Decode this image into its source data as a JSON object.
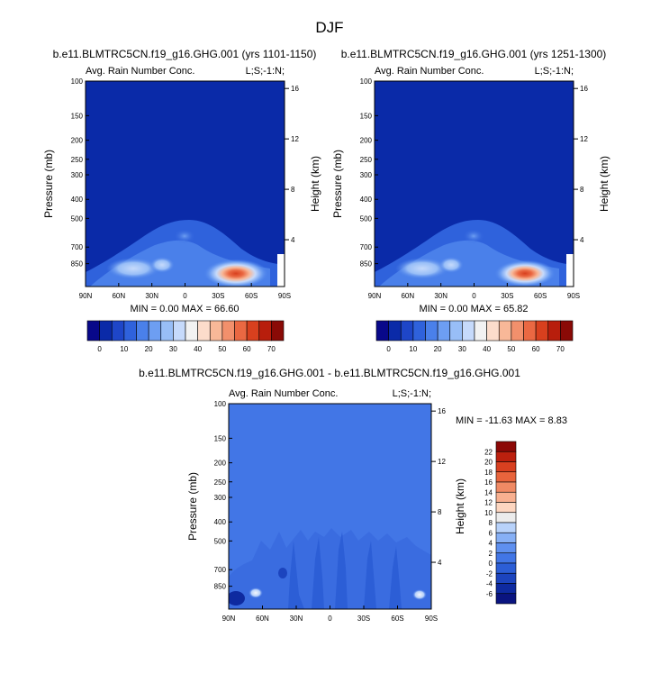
{
  "colors": {
    "frame": "#000000",
    "cmap_abs": [
      "#08088a",
      "#0a2aa8",
      "#1e46c8",
      "#2f62dc",
      "#4a80ea",
      "#6d9ef2",
      "#98bef7",
      "#c6dafb",
      "#f2f2f2",
      "#fcdccb",
      "#f8b898",
      "#f2906c",
      "#ea6842",
      "#d8401e",
      "#b81e0c",
      "#8a0a06"
    ],
    "cmap_diff": [
      "#0a1480",
      "#0e2aa0",
      "#1c44be",
      "#2c5ed6",
      "#4276e6",
      "#5f90ef",
      "#87b0f5",
      "#b8d2fa",
      "#ececec",
      "#fdd6c0",
      "#f8b090",
      "#f08a64",
      "#e8643c",
      "#d84020",
      "#bc200e",
      "#8c0806"
    ]
  },
  "chart_data": {
    "title": "DJF",
    "charts": [
      {
        "id": "panel-a",
        "type": "heatmap",
        "case_title": "b.e11.BLMTRC5CN.f19_g16.GHG.001 (yrs 1101-1150)",
        "left_label": "Avg. Rain Number Conc.",
        "right_label": "L;S;-1:N;",
        "ylabel": "Pressure (mb)",
        "ylabel_right": "Height (km)",
        "xticks": [
          "90N",
          "60N",
          "30N",
          "0",
          "30S",
          "60S",
          "90S"
        ],
        "yticks": [
          "100",
          "150",
          "200",
          "250",
          "300",
          "400",
          "500",
          "700",
          "850"
        ],
        "heights": [
          "16",
          "12",
          "8",
          "4"
        ],
        "min_max": "MIN =   0.00  MAX =  66.60",
        "min": 0.0,
        "max": 66.6,
        "colorbar_labels": [
          "0",
          "10",
          "20",
          "30",
          "40",
          "50",
          "60",
          "70"
        ]
      },
      {
        "id": "panel-b",
        "type": "heatmap",
        "case_title": "b.e11.BLMTRC5CN.f19_g16.GHG.001 (yrs 1251-1300)",
        "left_label": "Avg. Rain Number Conc.",
        "right_label": "L;S;-1:N;",
        "ylabel": "Pressure (mb)",
        "ylabel_right": "Height (km)",
        "xticks": [
          "90N",
          "60N",
          "30N",
          "0",
          "30S",
          "60S",
          "90S"
        ],
        "yticks": [
          "100",
          "150",
          "200",
          "250",
          "300",
          "400",
          "500",
          "700",
          "850"
        ],
        "heights": [
          "16",
          "12",
          "8",
          "4"
        ],
        "min_max": "MIN =   0.00  MAX =  65.82",
        "min": 0.0,
        "max": 65.82,
        "colorbar_labels": [
          "0",
          "10",
          "20",
          "30",
          "40",
          "50",
          "60",
          "70"
        ]
      },
      {
        "id": "panel-diff",
        "type": "heatmap",
        "case_title": "b.e11.BLMTRC5CN.f19_g16.GHG.001 - b.e11.BLMTRC5CN.f19_g16.GHG.001",
        "left_label": "Avg. Rain Number Conc.",
        "right_label": "L;S;-1:N;",
        "ylabel": "Pressure (mb)",
        "ylabel_right": "Height (km)",
        "xticks": [
          "90N",
          "60N",
          "30N",
          "0",
          "30S",
          "60S",
          "90S"
        ],
        "yticks": [
          "100",
          "150",
          "200",
          "250",
          "300",
          "400",
          "500",
          "700",
          "850"
        ],
        "heights": [
          "16",
          "12",
          "8",
          "4"
        ],
        "min_max": "MIN = -11.63  MAX =   8.83",
        "min": -11.63,
        "max": 8.83,
        "colorbar_labels": [
          "22",
          "20",
          "18",
          "16",
          "14",
          "12",
          "10",
          "8",
          "6",
          "4",
          "2",
          "0",
          "-2",
          "-4",
          "-6"
        ]
      }
    ]
  }
}
